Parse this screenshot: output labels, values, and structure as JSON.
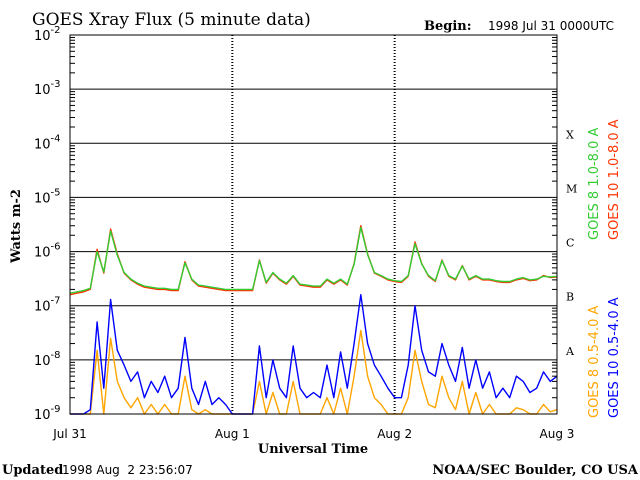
{
  "header": {
    "title": "GOES Xray Flux (5 minute data)",
    "begin_label": "Begin:",
    "begin_value": "1998 Jul 31 0000UTC"
  },
  "footer": {
    "updated_label": "Updated",
    "updated_value": "1998 Aug  2 23:56:07",
    "credit": "NOAA/SEC Boulder, CO USA"
  },
  "chart_data": {
    "type": "line",
    "title": "GOES Xray Flux (5 minute data)",
    "xlabel": "Universal Time",
    "ylabel": "Watts m-2",
    "y_scale": "log",
    "ylim": [
      1e-09,
      0.01
    ],
    "xlim": [
      0,
      72
    ],
    "x_unit": "hours since 1998 Jul 31 00:00 UTC",
    "x_tick_labels": [
      {
        "x": 0,
        "label": "Jul 31"
      },
      {
        "x": 24,
        "label": "Aug 1"
      },
      {
        "x": 48,
        "label": "Aug 2"
      },
      {
        "x": 72,
        "label": "Aug 3"
      }
    ],
    "y_tick_labels": [
      {
        "exp": -9,
        "label": "10",
        "sup": "-9"
      },
      {
        "exp": -8,
        "label": "10",
        "sup": "-8"
      },
      {
        "exp": -7,
        "label": "10",
        "sup": "-7"
      },
      {
        "exp": -6,
        "label": "10",
        "sup": "-6"
      },
      {
        "exp": -5,
        "label": "10",
        "sup": "-5"
      },
      {
        "exp": -4,
        "label": "10",
        "sup": "-4"
      },
      {
        "exp": -3,
        "label": "10",
        "sup": "-3"
      },
      {
        "exp": -2,
        "label": "10",
        "sup": "-2"
      }
    ],
    "flare_classes": [
      {
        "exp": -8,
        "label": "A"
      },
      {
        "exp": -7,
        "label": "B"
      },
      {
        "exp": -6,
        "label": "C"
      },
      {
        "exp": -5,
        "label": "M"
      },
      {
        "exp": -4,
        "label": "X"
      }
    ],
    "grid": true,
    "series": [
      {
        "name": "GOES 10 1.0-8.0 A",
        "color": "#ff3300",
        "x": [
          0,
          1,
          2,
          3,
          4,
          5,
          6,
          7,
          8,
          9,
          10,
          11,
          12,
          13,
          14,
          15,
          16,
          17,
          18,
          19,
          20,
          21,
          22,
          23,
          24,
          25,
          26,
          27,
          28,
          29,
          30,
          31,
          32,
          33,
          34,
          35,
          36,
          37,
          38,
          39,
          40,
          41,
          42,
          43,
          44,
          45,
          46,
          47,
          48,
          49,
          50,
          51,
          52,
          53,
          54,
          55,
          56,
          57,
          58,
          59,
          60,
          61,
          62,
          63,
          64,
          65,
          66,
          67,
          68,
          69,
          70,
          71,
          72
        ],
        "y": [
          1.6e-07,
          1.7e-07,
          1.8e-07,
          2e-07,
          1.1e-06,
          4e-07,
          2.6e-06,
          9e-07,
          4e-07,
          3e-07,
          2.5e-07,
          2.2e-07,
          2.1e-07,
          2e-07,
          2e-07,
          1.9e-07,
          1.9e-07,
          6.5e-07,
          3e-07,
          2.3e-07,
          2.2e-07,
          2.1e-07,
          2e-07,
          1.9e-07,
          1.9e-07,
          1.9e-07,
          1.9e-07,
          1.9e-07,
          7e-07,
          2.6e-07,
          4e-07,
          3e-07,
          2.5e-07,
          3.5e-07,
          2.4e-07,
          2.3e-07,
          2.2e-07,
          2.2e-07,
          3e-07,
          2.5e-07,
          3e-07,
          2.4e-07,
          6e-07,
          3e-06,
          9e-07,
          4e-07,
          3.5e-07,
          3e-07,
          2.8e-07,
          2.7e-07,
          3.5e-07,
          1.5e-06,
          6e-07,
          3.5e-07,
          2.8e-07,
          7e-07,
          3.5e-07,
          3e-07,
          5.5e-07,
          3e-07,
          3.5e-07,
          3e-07,
          3e-07,
          2.8e-07,
          2.7e-07,
          2.7e-07,
          3e-07,
          3.2e-07,
          2.9e-07,
          3e-07,
          3.6e-07,
          3.3e-07,
          3.4e-07
        ]
      },
      {
        "name": "GOES 8 1.0-8.0 A",
        "color": "#33cc33",
        "x": [
          0,
          1,
          2,
          3,
          4,
          5,
          6,
          7,
          8,
          9,
          10,
          11,
          12,
          13,
          14,
          15,
          16,
          17,
          18,
          19,
          20,
          21,
          22,
          23,
          24,
          25,
          26,
          27,
          28,
          29,
          30,
          31,
          32,
          33,
          34,
          35,
          36,
          37,
          38,
          39,
          40,
          41,
          42,
          43,
          44,
          45,
          46,
          47,
          48,
          49,
          50,
          51,
          52,
          53,
          54,
          55,
          56,
          57,
          58,
          59,
          60,
          61,
          62,
          63,
          64,
          65,
          66,
          67,
          68,
          69,
          70,
          71,
          72
        ],
        "y": [
          1.7e-07,
          1.8e-07,
          1.9e-07,
          2.1e-07,
          1e-06,
          4.2e-07,
          2.4e-06,
          8.5e-07,
          4.1e-07,
          3.1e-07,
          2.6e-07,
          2.3e-07,
          2.2e-07,
          2.1e-07,
          2.1e-07,
          2e-07,
          2e-07,
          6.2e-07,
          3.1e-07,
          2.4e-07,
          2.3e-07,
          2.2e-07,
          2.1e-07,
          2e-07,
          2e-07,
          2e-07,
          2e-07,
          2e-07,
          6.8e-07,
          2.7e-07,
          4.1e-07,
          3.1e-07,
          2.6e-07,
          3.6e-07,
          2.5e-07,
          2.4e-07,
          2.3e-07,
          2.3e-07,
          3.1e-07,
          2.6e-07,
          3.1e-07,
          2.5e-07,
          5.8e-07,
          2.8e-06,
          8.8e-07,
          4.1e-07,
          3.6e-07,
          3.1e-07,
          2.9e-07,
          2.8e-07,
          3.6e-07,
          1.4e-06,
          5.9e-07,
          3.6e-07,
          2.9e-07,
          6.8e-07,
          3.6e-07,
          3.1e-07,
          5.4e-07,
          3.1e-07,
          3.6e-07,
          3.1e-07,
          3.1e-07,
          2.9e-07,
          2.8e-07,
          2.8e-07,
          3.1e-07,
          3.3e-07,
          3e-07,
          3.1e-07,
          3.5e-07,
          3.4e-07,
          3.5e-07
        ]
      },
      {
        "name": "GOES 10 0.5-4.0 A",
        "color": "#0000ff",
        "x": [
          0,
          1,
          2,
          3,
          4,
          5,
          6,
          7,
          8,
          9,
          10,
          11,
          12,
          13,
          14,
          15,
          16,
          17,
          18,
          19,
          20,
          21,
          22,
          23,
          24,
          25,
          26,
          27,
          28,
          29,
          30,
          31,
          32,
          33,
          34,
          35,
          36,
          37,
          38,
          39,
          40,
          41,
          42,
          43,
          44,
          45,
          46,
          47,
          48,
          49,
          50,
          51,
          52,
          53,
          54,
          55,
          56,
          57,
          58,
          59,
          60,
          61,
          62,
          63,
          64,
          65,
          66,
          67,
          68,
          69,
          70,
          71,
          72
        ],
        "y": [
          1e-09,
          1e-09,
          1e-09,
          1.2e-09,
          5e-08,
          3e-09,
          1.3e-07,
          1.5e-08,
          8e-09,
          4e-09,
          6e-09,
          2e-09,
          4e-09,
          2.5e-09,
          5e-09,
          2e-09,
          3e-09,
          2.6e-08,
          3e-09,
          1.5e-09,
          4e-09,
          1.5e-09,
          2e-09,
          1.5e-09,
          1e-09,
          1e-09,
          1e-09,
          1e-09,
          1.8e-08,
          2e-09,
          1e-08,
          3e-09,
          2e-09,
          1.8e-08,
          3e-09,
          2e-09,
          2.5e-09,
          2e-09,
          8e-09,
          2e-09,
          1.4e-08,
          3e-09,
          2e-08,
          1.6e-07,
          2e-08,
          8e-09,
          5e-09,
          3e-09,
          2e-09,
          2e-09,
          8e-09,
          1e-07,
          1.5e-08,
          6e-09,
          5e-09,
          2e-08,
          8e-09,
          4e-09,
          1.7e-08,
          3e-09,
          1e-08,
          3e-09,
          6e-09,
          2e-09,
          3e-09,
          2e-09,
          5e-09,
          4e-09,
          2.5e-09,
          3e-09,
          6e-09,
          4e-09,
          5e-09
        ]
      },
      {
        "name": "GOES 8 0.5-4.0 A",
        "color": "#ffa500",
        "x": [
          0,
          1,
          2,
          3,
          4,
          5,
          6,
          7,
          8,
          9,
          10,
          11,
          12,
          13,
          14,
          15,
          16,
          17,
          18,
          19,
          20,
          21,
          22,
          23,
          24,
          25,
          26,
          27,
          28,
          29,
          30,
          31,
          32,
          33,
          34,
          35,
          36,
          37,
          38,
          39,
          40,
          41,
          42,
          43,
          44,
          45,
          46,
          47,
          48,
          49,
          50,
          51,
          52,
          53,
          54,
          55,
          56,
          57,
          58,
          59,
          60,
          61,
          62,
          63,
          64,
          65,
          66,
          67,
          68,
          69,
          70,
          71,
          72
        ],
        "y": [
          1e-09,
          1e-09,
          1e-09,
          1e-09,
          1.5e-08,
          1e-09,
          2.5e-08,
          4e-09,
          2e-09,
          1.3e-09,
          2e-09,
          1e-09,
          1.5e-09,
          1e-09,
          1.5e-09,
          1e-09,
          1e-09,
          5e-09,
          1.2e-09,
          1e-09,
          1.2e-09,
          1e-09,
          1e-09,
          1e-09,
          1e-09,
          1e-09,
          1e-09,
          1e-09,
          4e-09,
          1e-09,
          2.5e-09,
          1e-09,
          1e-09,
          4e-09,
          1e-09,
          1e-09,
          1e-09,
          1e-09,
          2e-09,
          1e-09,
          3e-09,
          1e-09,
          5e-09,
          3.5e-08,
          5e-09,
          2e-09,
          1.5e-09,
          1e-09,
          1e-09,
          1e-09,
          2e-09,
          1.5e-08,
          4e-09,
          1.5e-09,
          1.3e-09,
          5e-09,
          2e-09,
          1.2e-09,
          4e-09,
          1e-09,
          2.5e-09,
          1e-09,
          1.5e-09,
          1e-09,
          1e-09,
          1e-09,
          1.3e-09,
          1.2e-09,
          1e-09,
          1e-09,
          1.5e-09,
          1.1e-09,
          1.2e-09
        ]
      }
    ]
  }
}
